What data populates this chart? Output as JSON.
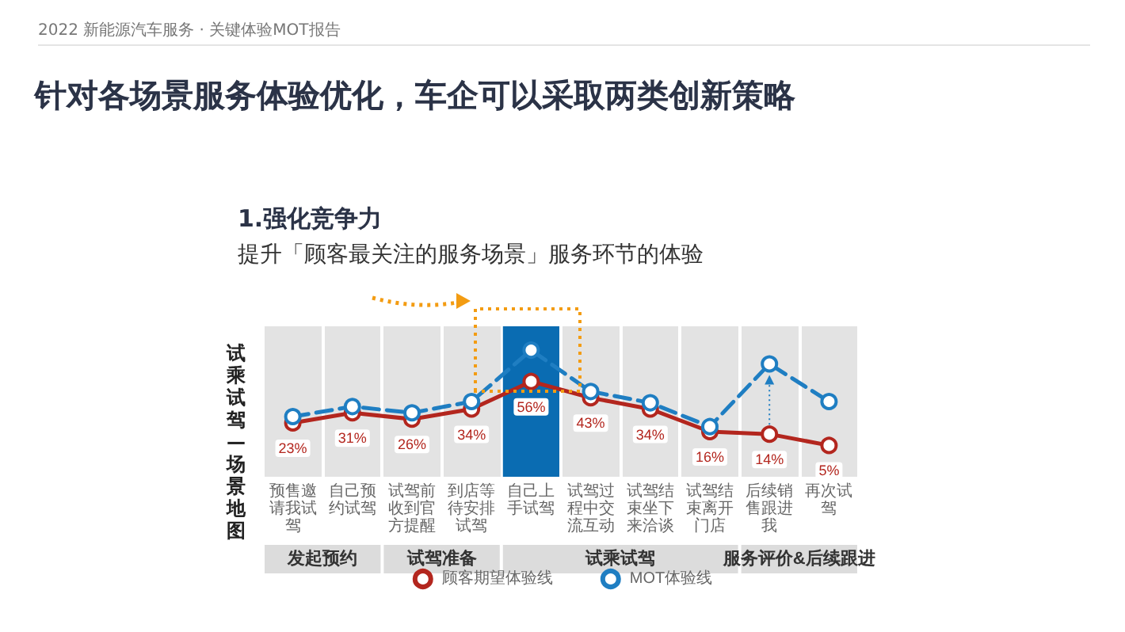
{
  "chart_data": {
    "type": "line",
    "title": "针对各场景服务体验优化，车企可以采取两类创新策略",
    "subtitle": "1.强化竞争力",
    "ylabel": "试乘试驾—场景地图",
    "annotations": [
      "2022 新能源汽车服务 · 关键体验MOT报告",
      "提升「顾客最关注的服务场景」服务环节的体验",
      "发起预约",
      "试驾准备",
      "试乘试驾",
      "服务评价&后续跟进"
    ],
    "categories": [
      "预售邀请我试驾",
      "自己预约试驾",
      "试驾前收到官方提醒",
      "到店等待安排试驾",
      "自己上手试驾",
      "试驾过程中交流互动",
      "试驾结束坐下来洽谈",
      "试驾结束离开门店",
      "后续销售跟进我",
      "再次试驾"
    ],
    "series": [
      {
        "name": "顾客期望体验线",
        "color": "#b3261e",
        "line_style": "solid",
        "values": [
          23,
          31,
          26,
          34,
          56,
          43,
          34,
          16,
          14,
          5
        ],
        "value_labels": [
          "23%",
          "31%",
          "26%",
          "34%",
          "56%",
          "43%",
          "34%",
          "16%",
          "14%",
          "5%"
        ]
      },
      {
        "name": "MOT体验线",
        "color": "#1f7ec2",
        "line_style": "dashed",
        "values": [
          28,
          36,
          31,
          40,
          81,
          48,
          39,
          20,
          70,
          40
        ]
      }
    ],
    "tick_labels": "x",
    "grid": "x",
    "marker": "circle",
    "legend": "bottom",
    "bands": [
      {
        "axis": "x",
        "from": "自己上手试驾",
        "to": "自己上手试驾",
        "color": "#0a6cb2"
      }
    ]
  }
}
